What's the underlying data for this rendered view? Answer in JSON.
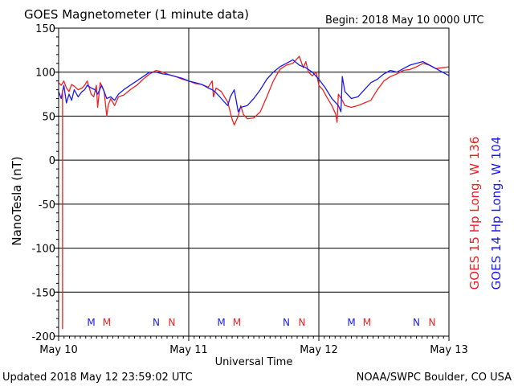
{
  "chart_data": {
    "type": "line",
    "title": "GOES Magnetometer (1 minute data)",
    "begin_label": "Begin:  2018 May 10 0000 UTC",
    "ylabel": "NanoTesla (nT)",
    "xlabel": "Universal Time",
    "ylim": [
      -200,
      150
    ],
    "yticks": [
      150,
      100,
      50,
      0,
      -50,
      -100,
      -150,
      -200
    ],
    "xlim": [
      0,
      3
    ],
    "x_unit": "days since 2018 May 10 0000 UTC",
    "xtick_labels": [
      "May 10",
      "May 11",
      "May 12",
      "May 13"
    ],
    "grid": true,
    "colors": {
      "goes15": "#ee2222",
      "goes14": "#1a1aee"
    },
    "legend": [
      {
        "text": "GOES 15 Hp  Long. W 136",
        "color": "#ee2222"
      },
      {
        "text": "GOES 14 Hp  Long. W 104",
        "color": "#1a1aee"
      }
    ],
    "markers": [
      {
        "label": "M",
        "x": 0.25,
        "color": "#1a1aee"
      },
      {
        "label": "M",
        "x": 0.37,
        "color": "#ee2222"
      },
      {
        "label": "N",
        "x": 0.75,
        "color": "#1a1aee"
      },
      {
        "label": "N",
        "x": 0.87,
        "color": "#ee2222"
      },
      {
        "label": "M",
        "x": 1.25,
        "color": "#1a1aee"
      },
      {
        "label": "M",
        "x": 1.37,
        "color": "#ee2222"
      },
      {
        "label": "N",
        "x": 1.75,
        "color": "#1a1aee"
      },
      {
        "label": "N",
        "x": 1.87,
        "color": "#ee2222"
      },
      {
        "label": "M",
        "x": 2.25,
        "color": "#1a1aee"
      },
      {
        "label": "M",
        "x": 2.37,
        "color": "#ee2222"
      },
      {
        "label": "N",
        "x": 2.75,
        "color": "#1a1aee"
      },
      {
        "label": "N",
        "x": 2.87,
        "color": "#ee2222"
      }
    ],
    "series": [
      {
        "name": "GOES 15 Hp  Long. W 136",
        "x": [
          0.0,
          0.02,
          0.04,
          0.06,
          0.08,
          0.1,
          0.12,
          0.15,
          0.18,
          0.2,
          0.22,
          0.25,
          0.27,
          0.29,
          0.3,
          0.32,
          0.35,
          0.37,
          0.38,
          0.4,
          0.43,
          0.46,
          0.5,
          0.55,
          0.6,
          0.65,
          0.7,
          0.75,
          0.8,
          0.85,
          0.9,
          0.95,
          1.0,
          1.05,
          1.1,
          1.15,
          1.18,
          1.19,
          1.21,
          1.25,
          1.3,
          1.33,
          1.35,
          1.38,
          1.4,
          1.42,
          1.45,
          1.5,
          1.55,
          1.6,
          1.65,
          1.7,
          1.75,
          1.8,
          1.85,
          1.88,
          1.9,
          1.92,
          1.95,
          1.98,
          2.0,
          2.03,
          2.06,
          2.1,
          2.13,
          2.14,
          2.15,
          2.18,
          2.2,
          2.25,
          2.3,
          2.35,
          2.4,
          2.45,
          2.5,
          2.55,
          2.6,
          2.65,
          2.7,
          2.75,
          2.8,
          2.85,
          2.9,
          2.95,
          3.0
        ],
        "y": [
          88,
          85,
          90,
          82,
          78,
          86,
          84,
          80,
          82,
          85,
          90,
          75,
          72,
          85,
          60,
          88,
          78,
          50,
          62,
          70,
          62,
          72,
          74,
          80,
          85,
          92,
          98,
          102,
          100,
          97,
          95,
          92,
          90,
          87,
          86,
          83,
          90,
          72,
          82,
          78,
          66,
          48,
          40,
          50,
          62,
          52,
          47,
          48,
          55,
          72,
          90,
          103,
          108,
          110,
          118,
          105,
          112,
          100,
          96,
          100,
          85,
          80,
          72,
          62,
          52,
          43,
          75,
          68,
          62,
          60,
          62,
          65,
          68,
          80,
          90,
          95,
          98,
          102,
          103,
          106,
          110,
          108,
          104,
          105,
          106
        ]
      },
      {
        "name": "GOES 14 Hp  Long. W 104",
        "x": [
          0.0,
          0.02,
          0.04,
          0.06,
          0.08,
          0.1,
          0.12,
          0.15,
          0.18,
          0.2,
          0.22,
          0.25,
          0.28,
          0.3,
          0.33,
          0.35,
          0.37,
          0.4,
          0.43,
          0.46,
          0.5,
          0.55,
          0.6,
          0.65,
          0.7,
          0.75,
          0.8,
          0.85,
          0.9,
          0.95,
          1.0,
          1.05,
          1.1,
          1.15,
          1.18,
          1.2,
          1.22,
          1.25,
          1.28,
          1.3,
          1.32,
          1.35,
          1.38,
          1.4,
          1.45,
          1.5,
          1.55,
          1.6,
          1.65,
          1.7,
          1.75,
          1.8,
          1.85,
          1.9,
          1.95,
          2.0,
          2.05,
          2.1,
          2.15,
          2.17,
          2.18,
          2.2,
          2.25,
          2.3,
          2.35,
          2.4,
          2.45,
          2.5,
          2.55,
          2.6,
          2.65,
          2.7,
          2.75,
          2.8,
          2.85,
          2.9,
          2.95,
          3.0
        ],
        "y": [
          78,
          70,
          85,
          65,
          75,
          68,
          80,
          72,
          78,
          80,
          85,
          82,
          80,
          75,
          85,
          78,
          70,
          72,
          68,
          75,
          80,
          85,
          90,
          95,
          100,
          100,
          98,
          97,
          95,
          93,
          90,
          88,
          86,
          82,
          80,
          78,
          75,
          70,
          65,
          62,
          72,
          80,
          55,
          60,
          62,
          70,
          80,
          92,
          100,
          106,
          110,
          114,
          108,
          105,
          100,
          92,
          82,
          70,
          62,
          55,
          95,
          78,
          70,
          72,
          80,
          88,
          92,
          98,
          102,
          100,
          104,
          108,
          110,
          112,
          108,
          104,
          100,
          96
        ]
      }
    ]
  },
  "footer": {
    "updated": "Updated 2018 May 12 23:59:02 UTC",
    "credit": "NOAA/SWPC Boulder, CO USA"
  }
}
